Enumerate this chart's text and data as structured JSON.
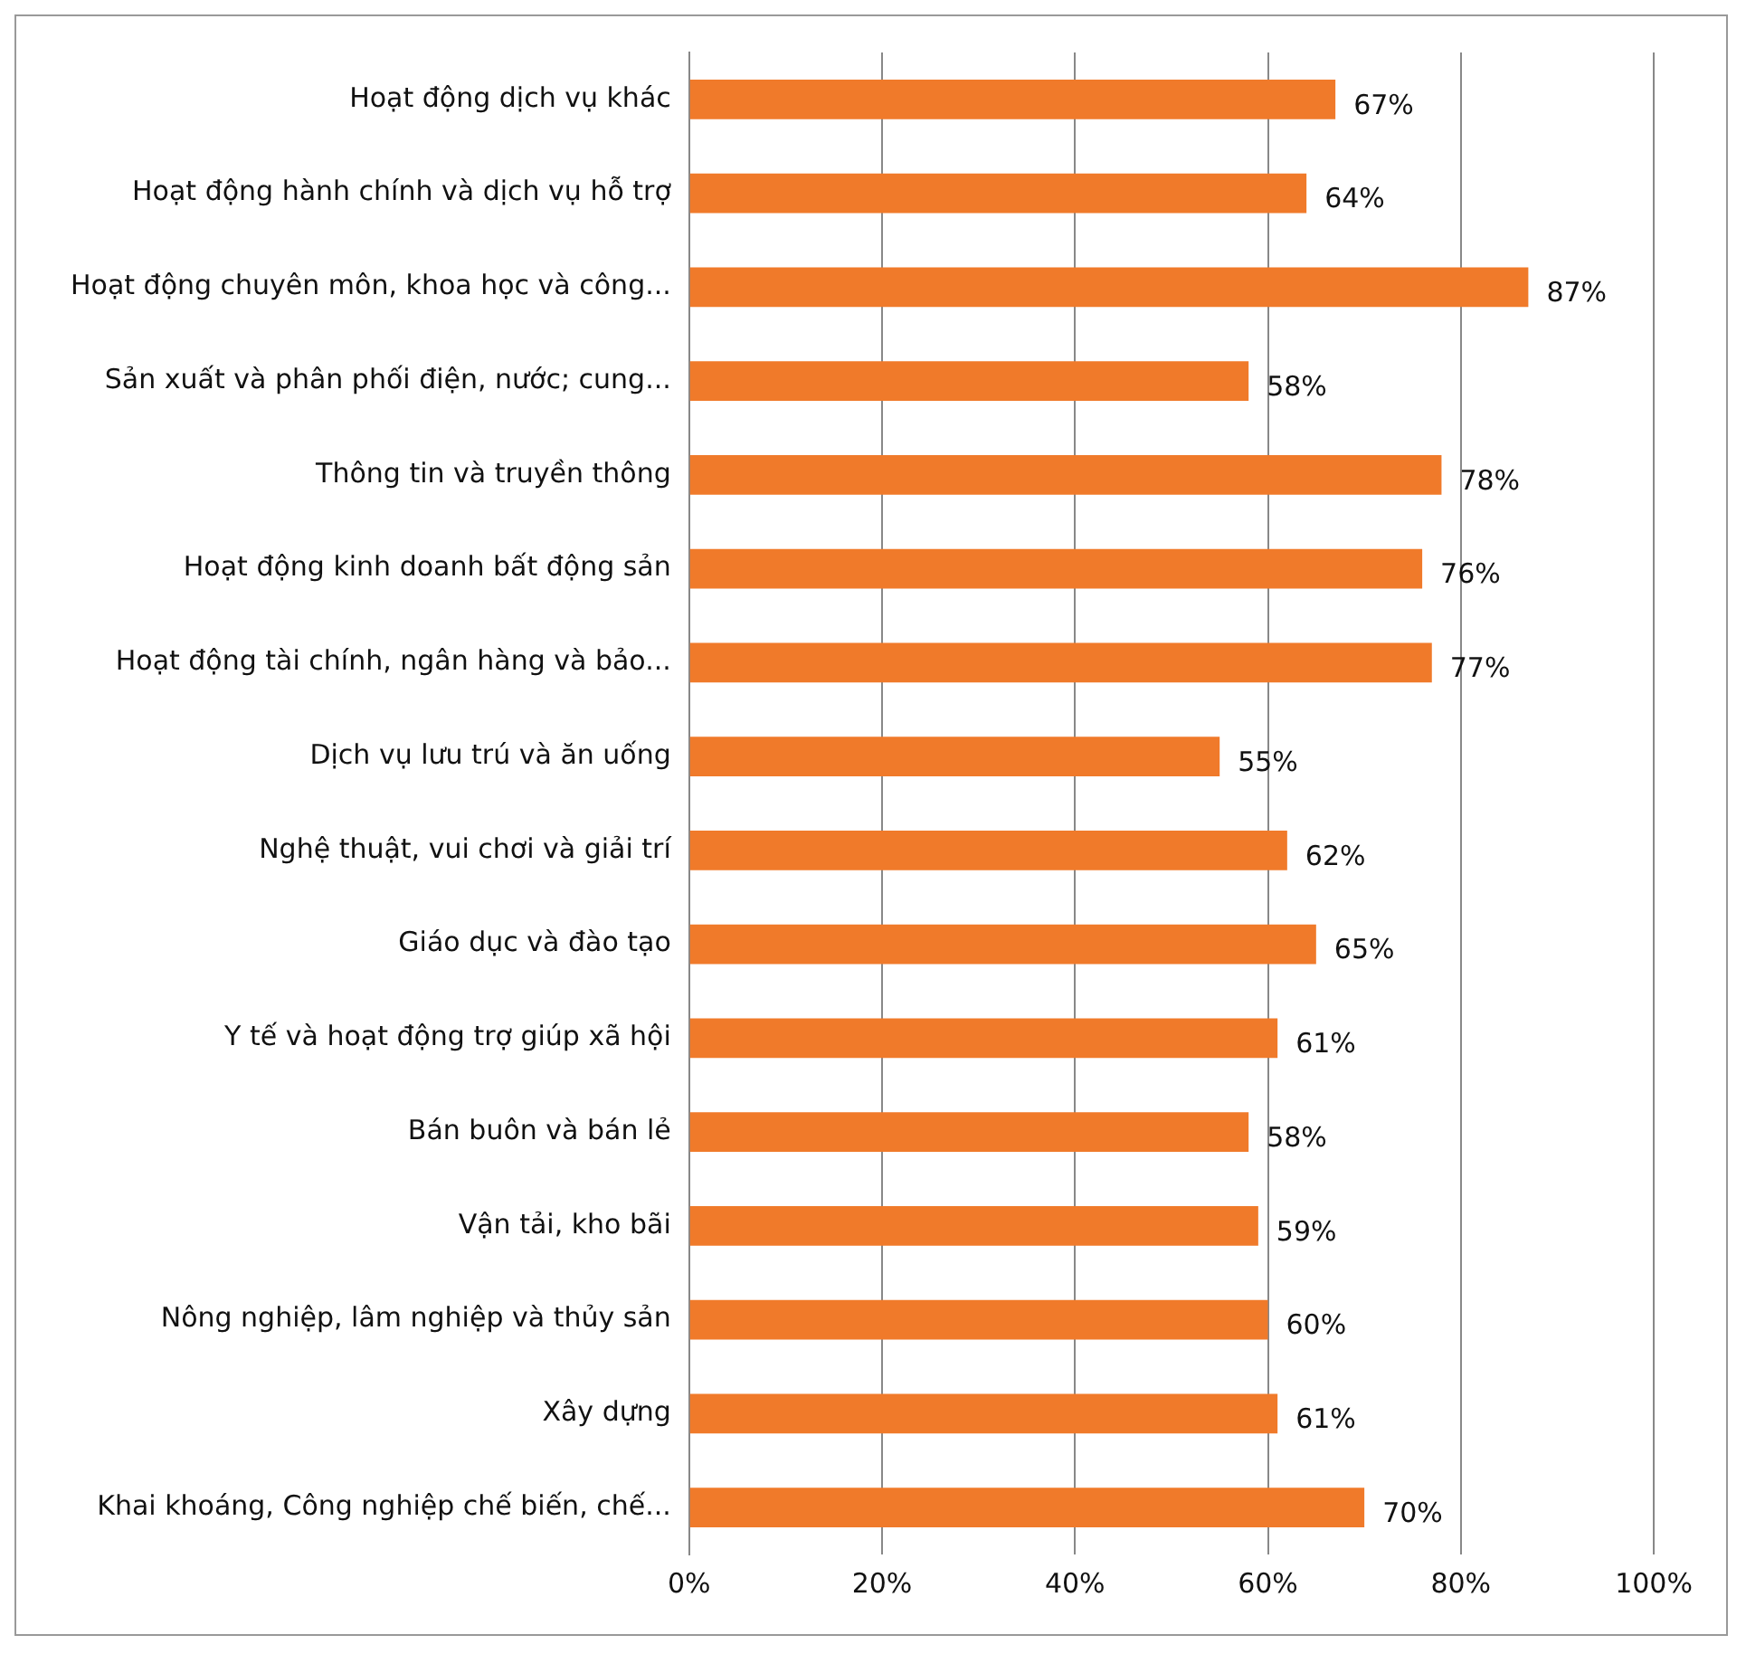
{
  "chart_data": {
    "type": "bar",
    "orientation": "horizontal",
    "categories": [
      "Hoạt động dịch vụ khác",
      "Hoạt động hành chính và dịch vụ hỗ trợ",
      "Hoạt động chuyên môn, khoa học và công...",
      "Sản xuất và phân phối điện, nước; cung...",
      "Thông tin và truyền thông",
      "Hoạt động kinh doanh bất động sản",
      "Hoạt động tài chính, ngân hàng và bảo...",
      "Dịch vụ lưu trú và ăn uống",
      "Nghệ thuật, vui chơi và giải trí",
      "Giáo dục và đào tạo",
      "Y tế và hoạt động trợ giúp xã hội",
      "Bán buôn và bán lẻ",
      "Vận tải, kho bãi",
      "Nông nghiệp, lâm nghiệp và thủy sản",
      "Xây dựng",
      "Khai khoáng, Công nghiệp chế biến, chế..."
    ],
    "values": [
      67,
      64,
      87,
      58,
      78,
      76,
      77,
      55,
      62,
      65,
      61,
      58,
      59,
      60,
      61,
      70
    ],
    "value_labels": [
      "67%",
      "64%",
      "87%",
      "58%",
      "78%",
      "76%",
      "77%",
      "55%",
      "62%",
      "65%",
      "61%",
      "58%",
      "59%",
      "60%",
      "61%",
      "70%"
    ],
    "color": "#f07a2a",
    "xlim": [
      0,
      100
    ],
    "xticks": [
      {
        "value": 0,
        "label": "0%"
      },
      {
        "value": 20,
        "label": "20%"
      },
      {
        "value": 40,
        "label": "40%"
      },
      {
        "value": 60,
        "label": "60%"
      },
      {
        "value": 80,
        "label": "80%"
      },
      {
        "value": 100,
        "label": "100%"
      }
    ],
    "grid": "x"
  }
}
